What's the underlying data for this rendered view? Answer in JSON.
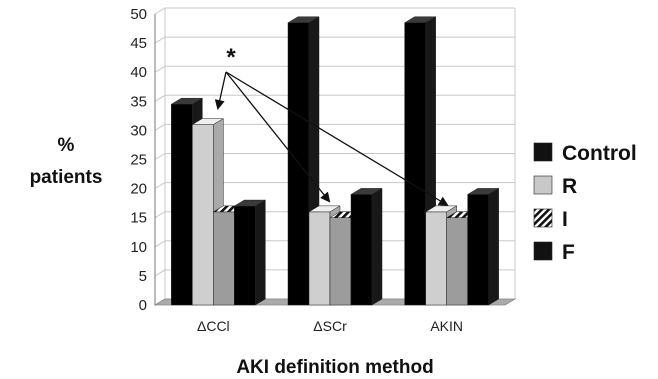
{
  "chart_data": {
    "type": "bar",
    "categories": [
      "ΔCCl",
      "ΔSCr",
      "AKIN"
    ],
    "series": [
      {
        "name": "Control",
        "values": [
          34.5,
          48.5,
          48.5
        ]
      },
      {
        "name": "R",
        "values": [
          31,
          16,
          16
        ]
      },
      {
        "name": "I",
        "values": [
          16,
          15,
          15
        ]
      },
      {
        "name": "F",
        "values": [
          17,
          19,
          19
        ]
      }
    ],
    "xlabel": "AKI definition method",
    "ylabel_line1": "%",
    "ylabel_line2": "patients",
    "ylim": [
      0,
      50
    ],
    "yticks": [
      0,
      5,
      10,
      15,
      20,
      25,
      30,
      35,
      40,
      45,
      50
    ],
    "grid": true,
    "legend_position": "right",
    "annotation": "*",
    "colors": {
      "Control": "#111111",
      "R": "#c8c8c8",
      "I": "#9a9a9a",
      "F": "#111111",
      "floor": "#aaaaaa",
      "grid": "#c8c8c8"
    }
  }
}
